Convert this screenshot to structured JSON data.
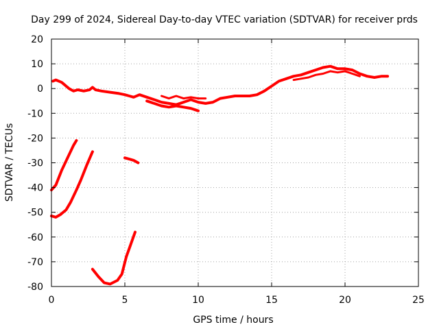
{
  "chart_data": {
    "type": "line",
    "title": "Day 299 of 2024, Sidereal Day-to-day VTEC variation (SDTVAR) for receiver prds",
    "xlabel": "GPS time / hours",
    "ylabel": "SDTVAR / TECUs",
    "xlim": [
      0,
      25
    ],
    "ylim": [
      -80,
      20
    ],
    "xticks": [
      0,
      5,
      10,
      15,
      20,
      25
    ],
    "yticks": [
      20,
      10,
      0,
      -10,
      -20,
      -30,
      -40,
      -50,
      -60,
      -70,
      -80
    ],
    "grid": true,
    "color": "#ff0000",
    "series": [
      {
        "name": "main-track",
        "points": [
          [
            0.1,
            3
          ],
          [
            0.3,
            3.5
          ],
          [
            0.5,
            3
          ],
          [
            0.7,
            2.5
          ],
          [
            0.9,
            1.5
          ],
          [
            1.0,
            1
          ],
          [
            1.2,
            0
          ],
          [
            1.5,
            -1
          ],
          [
            1.8,
            -0.5
          ],
          [
            2.2,
            -1
          ],
          [
            2.6,
            -0.5
          ],
          [
            2.8,
            0.5
          ],
          [
            3.0,
            -0.5
          ],
          [
            3.4,
            -1
          ],
          [
            4.0,
            -1.5
          ],
          [
            4.6,
            -2
          ],
          [
            5.0,
            -2.5
          ],
          [
            5.3,
            -3
          ],
          [
            5.6,
            -3.5
          ],
          [
            6.0,
            -2.5
          ],
          [
            6.5,
            -3.5
          ],
          [
            7.0,
            -4.5
          ],
          [
            7.5,
            -5.5
          ],
          [
            8.0,
            -6
          ],
          [
            8.5,
            -6.5
          ],
          [
            9.0,
            -5.5
          ],
          [
            9.5,
            -4.5
          ],
          [
            10.0,
            -5.5
          ],
          [
            10.5,
            -6
          ],
          [
            11.0,
            -5.5
          ],
          [
            11.5,
            -4
          ],
          [
            12.0,
            -3.5
          ],
          [
            12.5,
            -3
          ],
          [
            13.0,
            -3
          ],
          [
            13.5,
            -3
          ],
          [
            14.0,
            -2.5
          ],
          [
            14.5,
            -1
          ],
          [
            15.0,
            1
          ],
          [
            15.5,
            3
          ],
          [
            16.0,
            4
          ],
          [
            16.5,
            5
          ],
          [
            17.0,
            5.5
          ],
          [
            17.5,
            6.5
          ],
          [
            18.0,
            7.5
          ],
          [
            18.5,
            8.5
          ],
          [
            19.0,
            9
          ],
          [
            19.5,
            8
          ],
          [
            20.0,
            8
          ],
          [
            20.5,
            7.5
          ],
          [
            21.0,
            6
          ],
          [
            21.5,
            5
          ],
          [
            22.0,
            4.5
          ],
          [
            22.5,
            5
          ],
          [
            22.9,
            5
          ]
        ],
        "width": 4
      },
      {
        "name": "main-track-lower-band",
        "points": [
          [
            6.5,
            -5
          ],
          [
            7.0,
            -6
          ],
          [
            7.5,
            -7
          ],
          [
            8.0,
            -7.5
          ],
          [
            8.5,
            -7
          ],
          [
            9.0,
            -7.5
          ],
          [
            9.5,
            -8
          ],
          [
            10.0,
            -9
          ]
        ],
        "width": 4
      },
      {
        "name": "main-track-upper-band",
        "points": [
          [
            7.5,
            -3
          ],
          [
            8.0,
            -4
          ],
          [
            8.5,
            -3
          ],
          [
            9.0,
            -4
          ],
          [
            9.5,
            -3.5
          ],
          [
            10.0,
            -4
          ],
          [
            10.5,
            -4
          ]
        ],
        "width": 3
      },
      {
        "name": "main-track-late-band",
        "points": [
          [
            16.5,
            3.5
          ],
          [
            17.0,
            4
          ],
          [
            17.5,
            4.5
          ],
          [
            18.0,
            5.5
          ],
          [
            18.5,
            6
          ],
          [
            19.0,
            7
          ],
          [
            19.5,
            6.5
          ],
          [
            20.0,
            7
          ],
          [
            20.5,
            6
          ],
          [
            21.0,
            5
          ]
        ],
        "width": 3
      },
      {
        "name": "segment-a",
        "points": [
          [
            0.0,
            -41
          ],
          [
            0.3,
            -39
          ],
          [
            0.7,
            -33
          ],
          [
            1.1,
            -28
          ],
          [
            1.5,
            -23
          ],
          [
            1.7,
            -21
          ]
        ],
        "width": 4
      },
      {
        "name": "segment-b",
        "points": [
          [
            0.0,
            -51.5
          ],
          [
            0.3,
            -52
          ],
          [
            0.6,
            -51
          ],
          [
            1.0,
            -49
          ],
          [
            1.3,
            -46
          ],
          [
            1.7,
            -41
          ],
          [
            2.0,
            -37
          ],
          [
            2.4,
            -31
          ],
          [
            2.8,
            -25.5
          ]
        ],
        "width": 4
      },
      {
        "name": "segment-c",
        "points": [
          [
            5.0,
            -28
          ],
          [
            5.3,
            -28.5
          ],
          [
            5.6,
            -29
          ],
          [
            5.9,
            -30
          ]
        ],
        "width": 4
      },
      {
        "name": "segment-d",
        "points": [
          [
            2.8,
            -73
          ],
          [
            3.2,
            -76
          ],
          [
            3.6,
            -78.5
          ],
          [
            4.0,
            -79
          ],
          [
            4.5,
            -77.5
          ],
          [
            4.8,
            -75
          ],
          [
            5.1,
            -68
          ],
          [
            5.4,
            -63
          ],
          [
            5.7,
            -58
          ]
        ],
        "width": 4
      }
    ]
  }
}
